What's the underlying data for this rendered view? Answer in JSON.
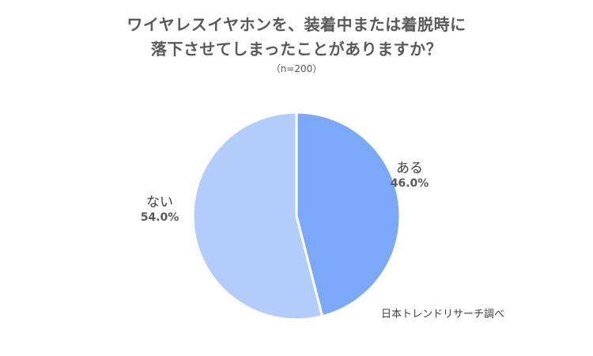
{
  "chart_data": {
    "type": "pie",
    "title_line1": "ワイヤレスイヤホンを、装着中または着脱時に",
    "title_line2": "落下させてしまったことがありますか？",
    "subtitle": "（n=200）",
    "slices": [
      {
        "label": "ある",
        "value": 46.0,
        "value_text": "46.0%",
        "color": "#7ba9f8"
      },
      {
        "label": "ない",
        "value": 54.0,
        "value_text": "54.0%",
        "color": "#b3cdfb"
      }
    ],
    "start_angle": "12 o'clock",
    "direction": "clockwise",
    "slice_border_color": "#ffffff",
    "source": "日本トレンドリサーチ調べ"
  }
}
